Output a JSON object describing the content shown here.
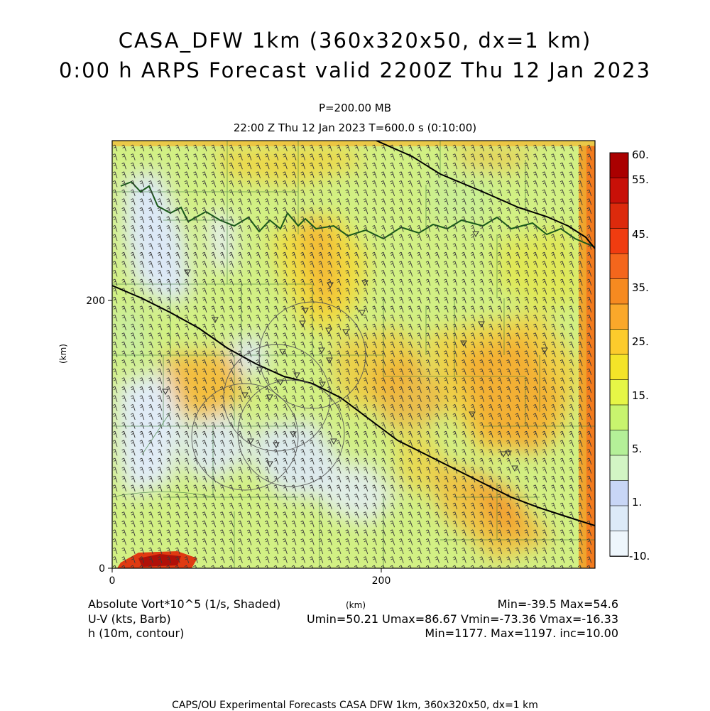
{
  "title": {
    "line1": "CASA_DFW 1km (360x320x50, dx=1 km)",
    "line2": "0:00 h ARPS Forecast valid 2200Z Thu 12 Jan 2023"
  },
  "subtitle": {
    "level": "P=200.00 MB",
    "time": "22:00 Z Thu 12 Jan 2023    T=600.0 s (0:10:00)"
  },
  "axes": {
    "x_ticks": [
      "0",
      "200"
    ],
    "y_ticks": [
      "0",
      "200"
    ],
    "x_unit": "(km)",
    "y_unit": "(km)"
  },
  "colorbar": {
    "labels": [
      "60.",
      "55.",
      "45.",
      "35.",
      "25.",
      "15.",
      "5.",
      "1.",
      "-10."
    ],
    "colors": [
      "#aa0000",
      "#c81008",
      "#dc2a0c",
      "#f03c10",
      "#f4661c",
      "#f68a20",
      "#faa82a",
      "#fccb2c",
      "#f4e428",
      "#e6f646",
      "#c8f46e",
      "#b4f098",
      "#d2f5c4",
      "#c8d6f6",
      "#dceaf8",
      "#eef6fc"
    ]
  },
  "info": {
    "var1_label": "Absolute Vort*10^5 (1/s, Shaded)",
    "var1_stats": "Min=-39.5 Max=54.6",
    "var2_label": "U-V (kts, Barb)",
    "var2_stats": "Umin=50.21 Umax=86.67 Vmin=-73.36 Vmax=-16.33",
    "var3_label": "h (10m, contour)",
    "var3_stats": "Min=1177. Max=1197. inc=10.00",
    "x_unit": "(km)"
  },
  "footer": "CAPS/OU Experimental Forecasts  CASA DFW 1km, 360x320x50, dx=1 km"
}
